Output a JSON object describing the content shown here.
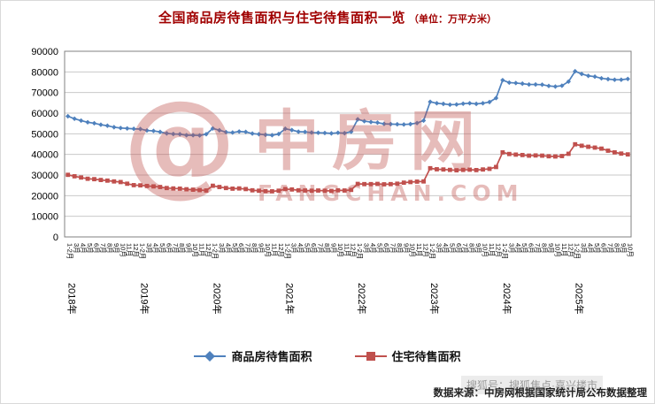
{
  "title": {
    "main": "全国商品房待售面积与住宅待售面积一览",
    "unit": "（单位：万平方米）"
  },
  "colors": {
    "title_red": "#a00000",
    "series_blue": "#4f81bd",
    "series_red": "#c0504d",
    "gridline": "#c9c9c9",
    "plot_border": "#808080"
  },
  "watermark": {
    "logo_glyph": "@",
    "brand": "中房网",
    "domain": "FANGCHAN.COM"
  },
  "footer": {
    "source": "数据来源：中房网根据国家统计局公布数据整理",
    "sohu": "搜狐号：搜狐焦点·嘉兴楼市"
  },
  "chart_data": {
    "type": "line",
    "title": "全国商品房待售面积与住宅待售面积一览",
    "unit": "万平方米",
    "grid": true,
    "legend_position": "bottom",
    "ylim": [
      0,
      90000
    ],
    "ytick_interval": 10000,
    "y_ticks": [
      0,
      10000,
      20000,
      30000,
      40000,
      50000,
      60000,
      70000,
      80000,
      90000
    ],
    "years": [
      "2018年",
      "2019年",
      "2020年",
      "2021年",
      "2022年",
      "2023年",
      "2024年",
      "2025年"
    ],
    "month_labels": [
      "1-2月",
      "3月",
      "4月",
      "5月",
      "6月",
      "7月",
      "8月",
      "9月",
      "10月",
      "11月",
      "12月"
    ],
    "months_in_last_year": 9,
    "series": [
      {
        "name": "商品房待售面积",
        "color": "#4f81bd",
        "marker": "diamond",
        "values": [
          58500,
          57300,
          56400,
          55600,
          55100,
          54400,
          53900,
          53200,
          52800,
          52600,
          52400,
          52300,
          51600,
          51400,
          50900,
          50200,
          49900,
          49800,
          49300,
          49300,
          49200,
          49800,
          52600,
          51700,
          50800,
          50600,
          51100,
          50900,
          50100,
          49800,
          49500,
          49300,
          49900,
          52400,
          51800,
          51000,
          50900,
          50600,
          50500,
          50400,
          50200,
          50500,
          50300,
          51000,
          57000,
          56100,
          55700,
          55400,
          54800,
          54700,
          54600,
          54500,
          54700,
          55200,
          56400,
          65500,
          64800,
          64500,
          64100,
          64200,
          64600,
          64800,
          64500,
          64800,
          65400,
          67300,
          76000,
          74800,
          74600,
          74300,
          73900,
          73900,
          73800,
          73200,
          72900,
          73300,
          75300,
          80300,
          79000,
          78100,
          77700,
          76900,
          76500,
          76200,
          76200,
          76600
        ]
      },
      {
        "name": "住宅待售面积",
        "color": "#c0504d",
        "marker": "square",
        "values": [
          30100,
          29400,
          28800,
          28200,
          28000,
          27600,
          27300,
          26900,
          26600,
          25800,
          25100,
          25000,
          24700,
          24500,
          24200,
          23700,
          23500,
          23400,
          23100,
          22900,
          22700,
          22500,
          24800,
          24200,
          23700,
          23400,
          23500,
          23200,
          22600,
          22400,
          22200,
          22100,
          22400,
          23200,
          23000,
          22600,
          22500,
          22400,
          22500,
          22400,
          22300,
          22600,
          22500,
          22800,
          25700,
          25600,
          25600,
          25700,
          25500,
          25600,
          25800,
          26300,
          26600,
          26800,
          26900,
          33300,
          32800,
          32700,
          32500,
          32300,
          32500,
          32600,
          32400,
          32700,
          33000,
          33900,
          41000,
          40200,
          39900,
          39700,
          39400,
          39500,
          39400,
          39100,
          39000,
          39200,
          40300,
          44900,
          44200,
          43700,
          43300,
          42800,
          41800,
          41000,
          40400,
          40000
        ]
      }
    ]
  }
}
